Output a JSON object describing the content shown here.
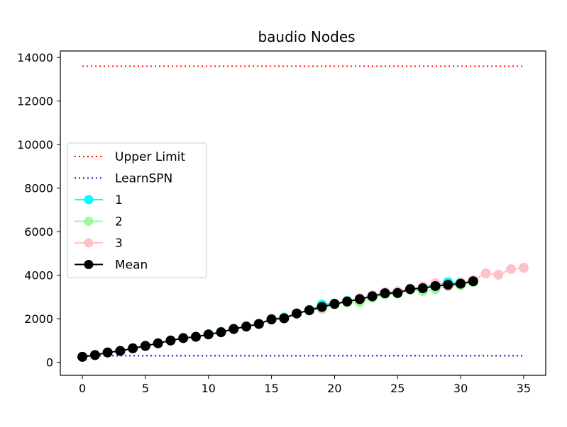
{
  "chart_data": {
    "type": "line",
    "title": "baudio Nodes",
    "xlabel": "",
    "ylabel": "",
    "xlim": [
      -1.75,
      36.75
    ],
    "ylim": [
      -600,
      14300
    ],
    "xticks": [
      0,
      5,
      10,
      15,
      20,
      25,
      30,
      35
    ],
    "yticks": [
      0,
      2000,
      4000,
      6000,
      8000,
      10000,
      12000,
      14000
    ],
    "grid": false,
    "legend_position": "center-left",
    "series": [
      {
        "name": "Upper Limit",
        "style": "dotted",
        "color": "#ff0000",
        "marker": "none",
        "x": [
          0,
          35
        ],
        "y": [
          13600,
          13600
        ]
      },
      {
        "name": "LearnSPN",
        "style": "dotted",
        "color": "#0000ff",
        "marker": "none",
        "x": [
          0,
          35
        ],
        "y": [
          300,
          300
        ]
      },
      {
        "name": "1",
        "style": "solid",
        "color": "#00ffff",
        "marker": "circle",
        "x": [
          0,
          1,
          2,
          3,
          4,
          5,
          6,
          7,
          8,
          9,
          10,
          11,
          12,
          13,
          14,
          15,
          16,
          17,
          18,
          19,
          20,
          21,
          22,
          23,
          24,
          25,
          26,
          27,
          28,
          29,
          30,
          31
        ],
        "y": [
          250,
          330,
          450,
          520,
          640,
          760,
          880,
          1000,
          1120,
          1170,
          1280,
          1400,
          1530,
          1660,
          1770,
          2000,
          2060,
          2240,
          2380,
          2650,
          2700,
          2820,
          2900,
          3050,
          3180,
          3200,
          3380,
          3470,
          3530,
          3680,
          3660,
          3760
        ]
      },
      {
        "name": "2",
        "style": "solid",
        "color": "#98fb98",
        "marker": "circle",
        "x": [
          0,
          1,
          2,
          3,
          4,
          5,
          6,
          7,
          8,
          9,
          10,
          11,
          12,
          13,
          14,
          15,
          16,
          17,
          18,
          19,
          20,
          21,
          22,
          23,
          24,
          25,
          26,
          27,
          28,
          29,
          30,
          31
        ],
        "y": [
          250,
          320,
          440,
          520,
          640,
          750,
          870,
          1000,
          1120,
          1180,
          1280,
          1390,
          1520,
          1640,
          1760,
          2000,
          2030,
          2250,
          2410,
          2450,
          2660,
          2750,
          2760,
          2960,
          3110,
          3150,
          3330,
          3270,
          3360,
          3500,
          3540,
          3680
        ]
      },
      {
        "name": "3",
        "style": "solid",
        "color": "#ffc0cb",
        "marker": "circle",
        "x": [
          0,
          1,
          2,
          3,
          4,
          5,
          6,
          7,
          8,
          9,
          10,
          11,
          12,
          13,
          14,
          15,
          16,
          17,
          18,
          19,
          20,
          21,
          22,
          23,
          24,
          25,
          26,
          27,
          28,
          29,
          30,
          31,
          32,
          33,
          34,
          35
        ],
        "y": [
          250,
          330,
          450,
          520,
          640,
          750,
          880,
          990,
          1110,
          1170,
          1270,
          1380,
          1510,
          1660,
          1770,
          1960,
          2010,
          2230,
          2390,
          2500,
          2690,
          2800,
          2940,
          3080,
          3220,
          3260,
          3380,
          3480,
          3620,
          3500,
          3640,
          3780,
          4080,
          4020,
          4280,
          4340
        ]
      },
      {
        "name": "Mean",
        "style": "solid",
        "color": "#000000",
        "marker": "circle",
        "x": [
          0,
          1,
          2,
          3,
          4,
          5,
          6,
          7,
          8,
          9,
          10,
          11,
          12,
          13,
          14,
          15,
          16,
          17,
          18,
          19,
          20,
          21,
          22,
          23,
          24,
          25,
          26,
          27,
          28,
          29,
          30,
          31
        ],
        "y": [
          250,
          330,
          450,
          520,
          640,
          750,
          870,
          1000,
          1110,
          1170,
          1280,
          1380,
          1530,
          1640,
          1760,
          1970,
          2020,
          2240,
          2390,
          2540,
          2680,
          2790,
          2900,
          3030,
          3170,
          3180,
          3360,
          3400,
          3500,
          3560,
          3610,
          3720
        ]
      }
    ]
  }
}
